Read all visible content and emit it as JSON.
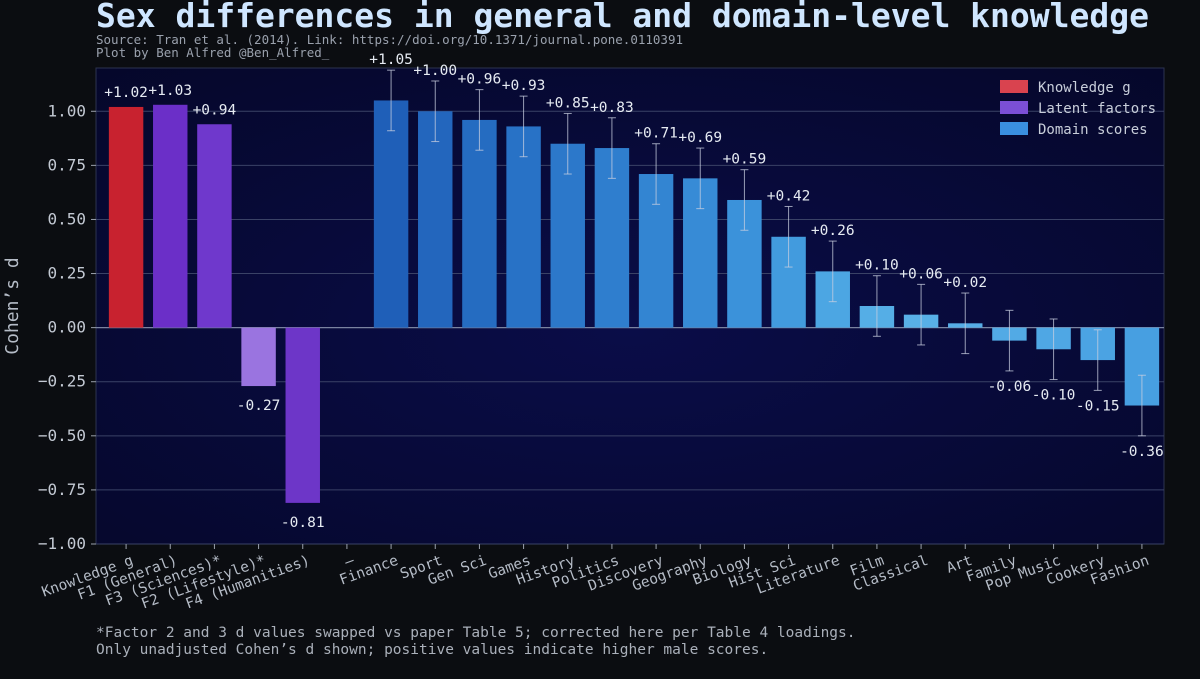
{
  "header": {
    "title": "Sex differences in general and domain-level knowledge",
    "source": "Source: Tran et al. (2014). Link: https://doi.org/10.1371/journal.pone.0110391",
    "credit": "Plot by Ben Alfred @Ben_Alfred_"
  },
  "footer": {
    "note1": "*Factor 2 and 3 d values swapped vs paper Table 5; corrected here per Table 4 loadings.",
    "note2": "Only unadjusted Cohen’s d shown; positive values indicate higher male scores."
  },
  "chart_data": {
    "type": "bar",
    "title": "Sex differences in general and domain-level knowledge",
    "xlabel": "",
    "ylabel": "Cohen’s d",
    "ylim": [
      -1.0,
      1.2
    ],
    "yticks": [
      "1.00",
      "0.75",
      "0.50",
      "0.25",
      "0.00",
      "−0.25",
      "−0.50",
      "−0.75",
      "−1.00"
    ],
    "ytick_values": [
      1.0,
      0.75,
      0.5,
      0.25,
      0.0,
      -0.25,
      -0.5,
      -0.75,
      -1.0
    ],
    "grid": true,
    "legend_position": "top-right",
    "legend": [
      {
        "label": "Knowledge g",
        "color": "#d9434f"
      },
      {
        "label": "Latent factors",
        "color": "#7b4fd6"
      },
      {
        "label": "Domain scores",
        "color": "#3a8fe0"
      }
    ],
    "bars": [
      {
        "category": "Knowledge g",
        "value": 1.02,
        "label": "+1.02",
        "group": "g",
        "color": "#c8222f",
        "err": null
      },
      {
        "category": "F1 (General)",
        "value": 1.03,
        "label": "+1.03",
        "group": "latent",
        "color": "#6b2fc8",
        "err": null
      },
      {
        "category": "F3 (Sciences)*",
        "value": 0.94,
        "label": "+0.94",
        "group": "latent",
        "color": "#6f38cc",
        "err": null
      },
      {
        "category": "F2 (Lifestyle)*",
        "value": -0.27,
        "label": "-0.27",
        "group": "latent",
        "color": "#9a74e0",
        "err": null
      },
      {
        "category": "F4 (Humanities)",
        "value": -0.81,
        "label": "-0.81",
        "group": "latent",
        "color": "#6d36c8",
        "err": null
      },
      {
        "category": "—",
        "value": null,
        "label": "",
        "group": "spacer",
        "color": "",
        "err": null
      },
      {
        "category": "Finance",
        "value": 1.05,
        "label": "+1.05",
        "group": "domain",
        "color": "#1f5fb8",
        "err": 0.14
      },
      {
        "category": "Sport",
        "value": 1.0,
        "label": "+1.00",
        "group": "domain",
        "color": "#2366bd",
        "err": 0.14
      },
      {
        "category": "Gen Sci",
        "value": 0.96,
        "label": "+0.96",
        "group": "domain",
        "color": "#256cc1",
        "err": 0.14
      },
      {
        "category": "Games",
        "value": 0.93,
        "label": "+0.93",
        "group": "domain",
        "color": "#2872c6",
        "err": 0.14
      },
      {
        "category": "History",
        "value": 0.85,
        "label": "+0.85",
        "group": "domain",
        "color": "#2c78ca",
        "err": 0.14
      },
      {
        "category": "Politics",
        "value": 0.83,
        "label": "+0.83",
        "group": "domain",
        "color": "#2f7ece",
        "err": 0.14
      },
      {
        "category": "Discovery",
        "value": 0.71,
        "label": "+0.71",
        "group": "domain",
        "color": "#3385d2",
        "err": 0.14
      },
      {
        "category": "Geography",
        "value": 0.69,
        "label": "+0.69",
        "group": "domain",
        "color": "#378bd6",
        "err": 0.14
      },
      {
        "category": "Biology",
        "value": 0.59,
        "label": "+0.59",
        "group": "domain",
        "color": "#3b92da",
        "err": 0.14
      },
      {
        "category": "Hist Sci",
        "value": 0.42,
        "label": "+0.42",
        "group": "domain",
        "color": "#429bde",
        "err": 0.14
      },
      {
        "category": "Literature",
        "value": 0.26,
        "label": "+0.26",
        "group": "domain",
        "color": "#4ca6e3",
        "err": 0.14
      },
      {
        "category": "Film",
        "value": 0.1,
        "label": "+0.10",
        "group": "domain",
        "color": "#55aee6",
        "err": 0.14
      },
      {
        "category": "Classical",
        "value": 0.06,
        "label": "+0.06",
        "group": "domain",
        "color": "#58b0e7",
        "err": 0.14
      },
      {
        "category": "Art",
        "value": 0.02,
        "label": "+0.02",
        "group": "domain",
        "color": "#56ade6",
        "err": 0.14
      },
      {
        "category": "Family",
        "value": -0.06,
        "label": "-0.06",
        "group": "domain",
        "color": "#52aae5",
        "err": 0.14
      },
      {
        "category": "Pop Music",
        "value": -0.1,
        "label": "-0.10",
        "group": "domain",
        "color": "#4fa7e4",
        "err": 0.14
      },
      {
        "category": "Cookery",
        "value": -0.15,
        "label": "-0.15",
        "group": "domain",
        "color": "#4ba3e3",
        "err": 0.14
      },
      {
        "category": "Fashion",
        "value": -0.36,
        "label": "-0.36",
        "group": "domain",
        "color": "#479fe1",
        "err": 0.14
      }
    ]
  }
}
